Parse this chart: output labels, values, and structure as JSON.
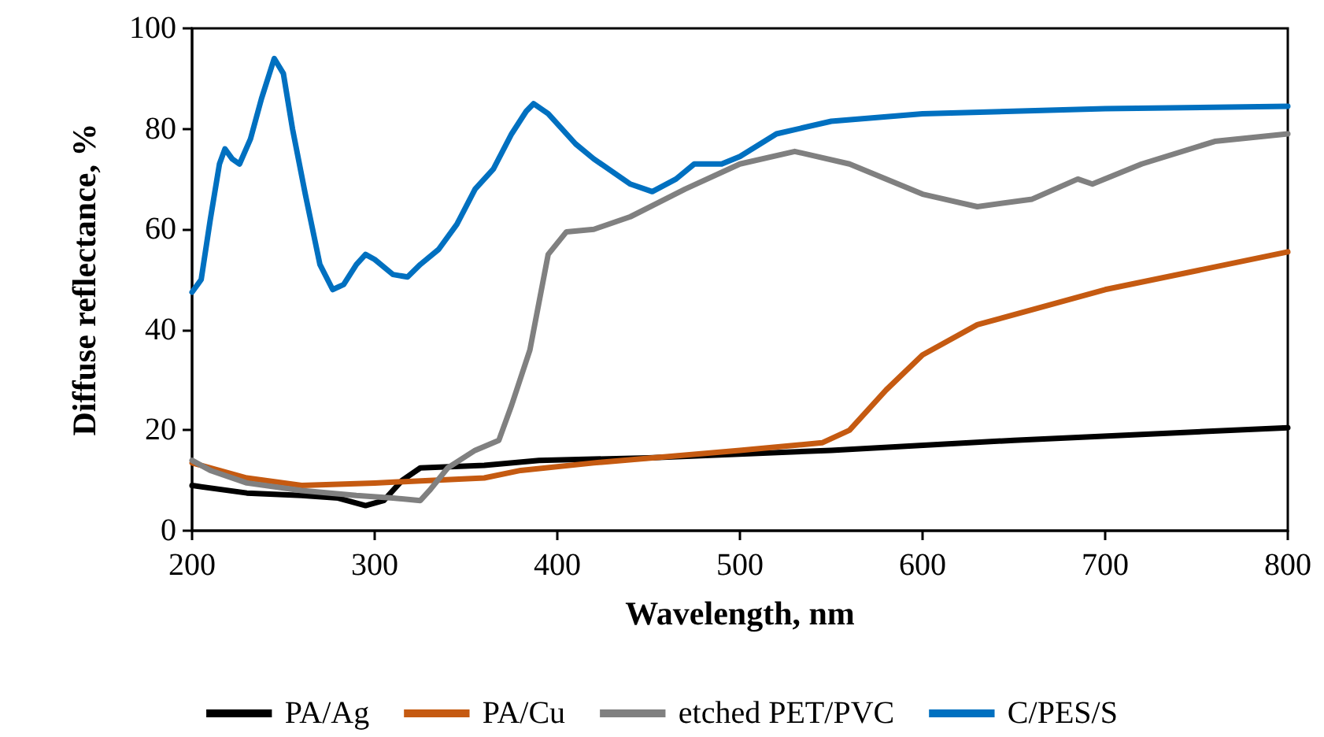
{
  "chart_data": {
    "type": "line",
    "xlabel": "Wavelength, nm",
    "ylabel": "Diffuse reflectance, %",
    "xlim": [
      200,
      800
    ],
    "xticks": [
      200,
      300,
      400,
      500,
      600,
      700,
      800
    ],
    "ylim": [
      0,
      100
    ],
    "yticks": [
      0,
      20,
      40,
      60,
      80,
      100
    ],
    "grid": false,
    "legend": "bottom",
    "marker": "none",
    "line_style": "solid",
    "series": [
      {
        "name": "PA/Ag",
        "color": "#000000",
        "x": [
          200,
          230,
          260,
          280,
          295,
          305,
          315,
          325,
          360,
          390,
          450,
          550,
          650,
          800
        ],
        "values": [
          9,
          7.5,
          7,
          6.5,
          5,
          6,
          10,
          12.5,
          13,
          14,
          14.5,
          16,
          18,
          20.5
        ]
      },
      {
        "name": "PA/Cu",
        "color": "#c55a11",
        "x": [
          200,
          230,
          260,
          300,
          330,
          360,
          380,
          420,
          500,
          545,
          560,
          580,
          600,
          630,
          700,
          800
        ],
        "values": [
          13.5,
          10.5,
          9,
          9.5,
          10,
          10.5,
          12,
          13.5,
          16,
          17.5,
          20,
          28,
          35,
          41,
          48,
          55.5
        ]
      },
      {
        "name": "etched PET/PVC",
        "color": "#808080",
        "x": [
          200,
          210,
          230,
          260,
          290,
          310,
          325,
          330,
          340,
          355,
          368,
          375,
          385,
          395,
          405,
          420,
          440,
          470,
          500,
          530,
          560,
          600,
          630,
          660,
          685,
          693,
          720,
          760,
          800
        ],
        "values": [
          14,
          12,
          9.5,
          8,
          7,
          6.5,
          6,
          8,
          12.5,
          16,
          18,
          25,
          36,
          55,
          59.5,
          60,
          62.5,
          68,
          73,
          75.5,
          73,
          67,
          64.5,
          66,
          70,
          69,
          73,
          77.5,
          79
        ]
      },
      {
        "name": "C/PES/S",
        "color": "#0070c0",
        "x": [
          200,
          205,
          210,
          215,
          218,
          222,
          226,
          232,
          238,
          245,
          250,
          255,
          262,
          270,
          277,
          283,
          290,
          295,
          300,
          310,
          318,
          325,
          335,
          345,
          355,
          365,
          375,
          383,
          387,
          395,
          410,
          420,
          440,
          452,
          465,
          475,
          490,
          500,
          520,
          550,
          600,
          700,
          800
        ],
        "values": [
          47.5,
          50,
          62,
          73,
          76,
          74,
          73,
          78,
          86,
          94,
          91,
          80,
          67,
          53,
          48,
          49,
          53,
          55,
          54,
          51,
          50.5,
          53,
          56,
          61,
          68,
          72,
          79,
          83.5,
          85,
          83,
          77,
          74,
          69,
          67.5,
          70,
          73,
          73,
          74.5,
          79,
          81.5,
          83,
          84,
          84.5
        ]
      }
    ]
  }
}
